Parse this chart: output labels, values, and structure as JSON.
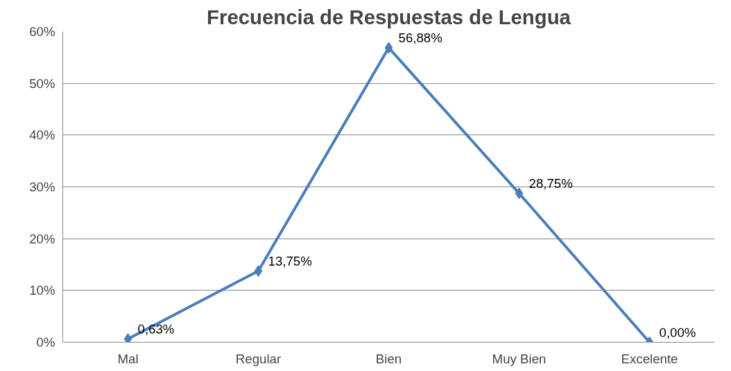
{
  "chart_data": {
    "type": "line",
    "title": "Frecuencia de Respuestas de Lengua",
    "categories": [
      "Mal",
      "Regular",
      "Bien",
      "Muy Bien",
      "Excelente"
    ],
    "series": [
      {
        "color": "#4a7ebb",
        "values": [
          0.63,
          13.75,
          56.88,
          28.75,
          0.0
        ],
        "value_labels": [
          "0,63%",
          "13,75%",
          "56,88%",
          "28,75%",
          "0,00%"
        ]
      }
    ],
    "ylim": [
      0,
      60
    ],
    "yticks": [
      {
        "value": 0,
        "label": "0%"
      },
      {
        "value": 10,
        "label": "10%"
      },
      {
        "value": 20,
        "label": "20%"
      },
      {
        "value": 30,
        "label": "30%"
      },
      {
        "value": 40,
        "label": "40%"
      },
      {
        "value": 50,
        "label": "50%"
      },
      {
        "value": 60,
        "label": "60%"
      }
    ],
    "grid": "y",
    "marker": "diamond",
    "line_style": "solid"
  }
}
